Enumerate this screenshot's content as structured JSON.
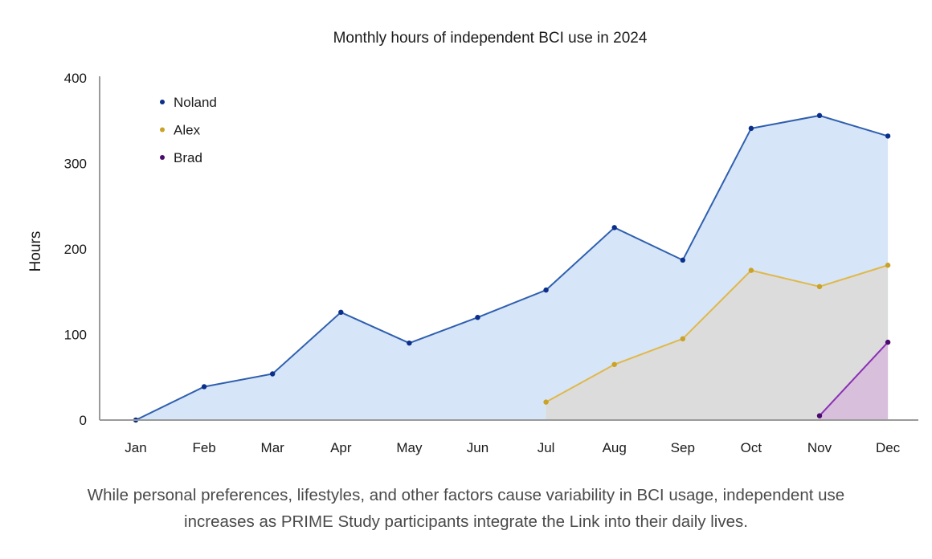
{
  "chart_data": {
    "type": "area",
    "title": "Monthly hours of independent BCI use in 2024",
    "xlabel": "",
    "ylabel": "Hours",
    "ylim": [
      0,
      400
    ],
    "yticks": [
      0,
      100,
      200,
      300,
      400
    ],
    "ytick_labels": [
      "0",
      "100",
      "200",
      "300",
      "400"
    ],
    "categories": [
      "Jan",
      "Feb",
      "Mar",
      "Apr",
      "May",
      "Jun",
      "Jul",
      "Aug",
      "Sep",
      "Oct",
      "Nov",
      "Dec"
    ],
    "grid": false,
    "legend_position": "top-left",
    "series": [
      {
        "name": "Noland",
        "line_color": "#2f5fae",
        "marker_color": "#0b2f8a",
        "fill_color": "#d6e5f7",
        "values": [
          0,
          39,
          54,
          126,
          90,
          120,
          152,
          225,
          187,
          341,
          356,
          332
        ]
      },
      {
        "name": "Alex",
        "line_color": "#e0b84a",
        "marker_color": "#c9a227",
        "fill_color": "#dcdcdc",
        "values": [
          null,
          null,
          null,
          null,
          null,
          null,
          21,
          65,
          95,
          175,
          156,
          181
        ]
      },
      {
        "name": "Brad",
        "line_color": "#8a2fb5",
        "marker_color": "#4a0a6e",
        "fill_color": "#d8bfdc",
        "values": [
          null,
          null,
          null,
          null,
          null,
          null,
          null,
          null,
          null,
          null,
          5,
          91
        ]
      }
    ]
  },
  "caption": {
    "line1": "While personal preferences, lifestyles, and other factors cause variability in BCI usage, independent use",
    "line2": "increases as PRIME Study participants integrate the Link into their daily lives."
  }
}
